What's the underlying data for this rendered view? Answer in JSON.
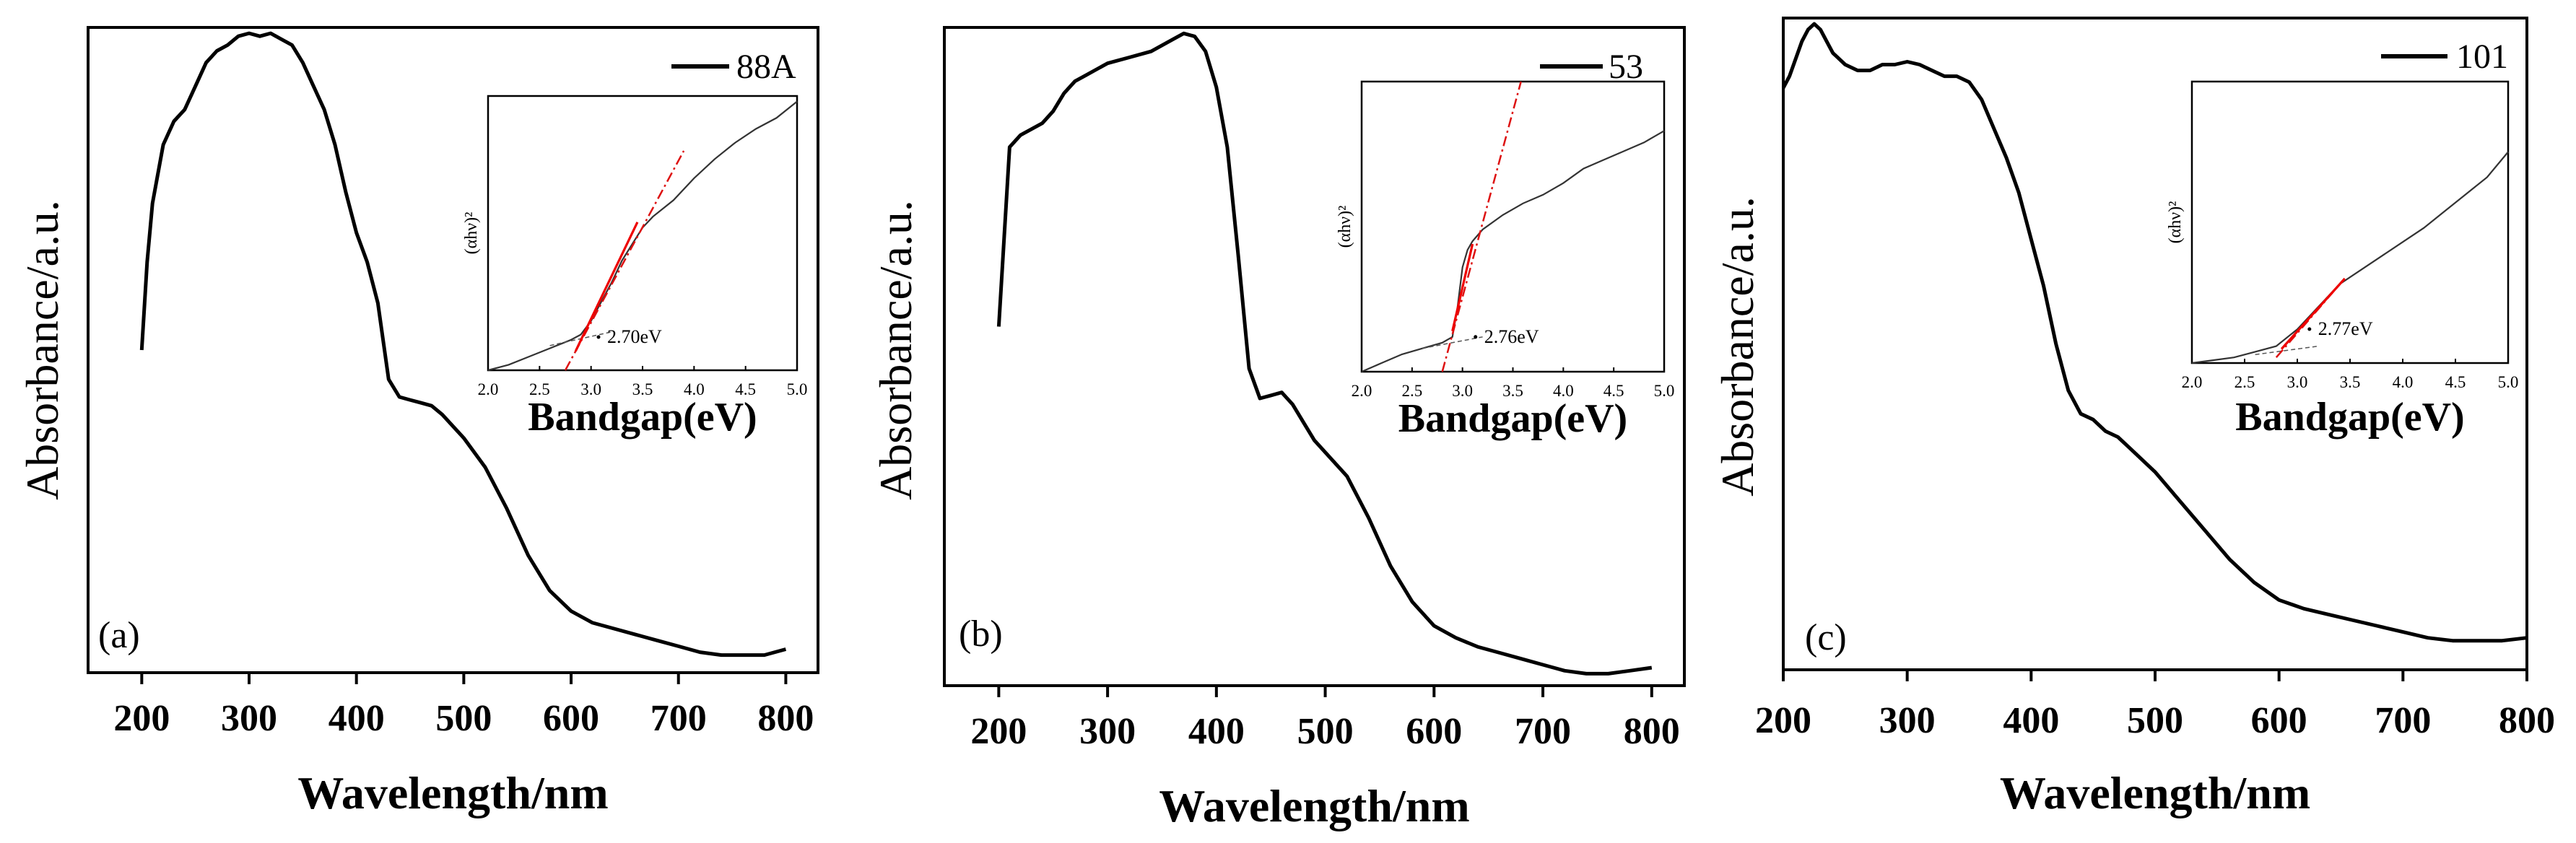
{
  "chart_data": [
    {
      "type": "line",
      "panel_label": "(a)",
      "xlabel": "Wavelength/nm",
      "ylabel": "Absorbance/a.u.",
      "xlim": [
        150,
        830
      ],
      "ylim": [
        0,
        1.1
      ],
      "xticks": [
        200,
        300,
        400,
        500,
        600,
        700,
        800
      ],
      "legend": "88A",
      "series": [
        {
          "name": "88A",
          "x": [
            200,
            205,
            210,
            220,
            230,
            240,
            250,
            260,
            270,
            280,
            290,
            300,
            310,
            320,
            330,
            340,
            350,
            360,
            370,
            380,
            390,
            400,
            410,
            420,
            430,
            440,
            450,
            460,
            470,
            480,
            490,
            500,
            520,
            540,
            560,
            580,
            600,
            620,
            640,
            660,
            680,
            700,
            720,
            740,
            760,
            780,
            800
          ],
          "y": [
            0.55,
            0.7,
            0.8,
            0.9,
            0.94,
            0.96,
            1.0,
            1.04,
            1.06,
            1.07,
            1.085,
            1.09,
            1.085,
            1.09,
            1.08,
            1.07,
            1.04,
            1.0,
            0.96,
            0.9,
            0.82,
            0.75,
            0.7,
            0.63,
            0.5,
            0.47,
            0.465,
            0.46,
            0.455,
            0.44,
            0.42,
            0.4,
            0.35,
            0.28,
            0.2,
            0.14,
            0.105,
            0.085,
            0.075,
            0.065,
            0.055,
            0.045,
            0.035,
            0.03,
            0.03,
            0.03,
            0.04
          ]
        }
      ],
      "inset": {
        "xlabel": "Bandgap(eV)",
        "ylabel": "(αhν)²",
        "xlim": [
          2.0,
          5.0
        ],
        "ylim": [
          0,
          1
        ],
        "xticks": [
          2.0,
          2.5,
          3.0,
          3.5,
          4.0,
          4.5,
          5.0
        ],
        "xtick_labels": [
          "2.0",
          "2.5",
          "3.0",
          "3.5",
          "4.0",
          "4.5",
          "5.0"
        ],
        "curve": {
          "x": [
            2.0,
            2.2,
            2.4,
            2.6,
            2.8,
            2.9,
            3.0,
            3.1,
            3.2,
            3.3,
            3.4,
            3.5,
            3.6,
            3.8,
            4.0,
            4.2,
            4.4,
            4.6,
            4.8,
            5.0
          ],
          "y": [
            0.0,
            0.02,
            0.05,
            0.08,
            0.11,
            0.13,
            0.18,
            0.25,
            0.32,
            0.4,
            0.46,
            0.52,
            0.56,
            0.62,
            0.7,
            0.77,
            0.83,
            0.88,
            0.92,
            0.98
          ]
        },
        "fit_segment": {
          "x": [
            2.85,
            3.45
          ],
          "y": [
            0.07,
            0.54
          ]
        },
        "tangent": {
          "x": [
            2.75,
            3.9
          ],
          "y": [
            0.0,
            0.8
          ]
        },
        "baseline": {
          "x": [
            2.6,
            3.2
          ],
          "y": [
            0.09,
            0.14
          ]
        },
        "bandgap_annotation": "2.70eV"
      }
    },
    {
      "type": "line",
      "panel_label": "(b)",
      "xlabel": "Wavelength/nm",
      "ylabel": "Absorbance/a.u.",
      "xlim": [
        150,
        830
      ],
      "ylim": [
        0,
        1.1
      ],
      "xticks": [
        200,
        300,
        400,
        500,
        600,
        700,
        800
      ],
      "legend": "53",
      "series": [
        {
          "name": "53",
          "x": [
            200,
            205,
            210,
            220,
            230,
            240,
            250,
            260,
            270,
            280,
            290,
            300,
            320,
            340,
            360,
            370,
            380,
            390,
            400,
            410,
            420,
            430,
            440,
            450,
            460,
            470,
            480,
            490,
            500,
            520,
            540,
            560,
            580,
            600,
            620,
            640,
            660,
            680,
            700,
            720,
            740,
            760,
            780,
            800
          ],
          "y": [
            0.6,
            0.75,
            0.9,
            0.92,
            0.93,
            0.94,
            0.96,
            0.99,
            1.01,
            1.02,
            1.03,
            1.04,
            1.05,
            1.06,
            1.08,
            1.09,
            1.085,
            1.06,
            1.0,
            0.9,
            0.72,
            0.53,
            0.48,
            0.485,
            0.49,
            0.47,
            0.44,
            0.41,
            0.39,
            0.35,
            0.28,
            0.2,
            0.14,
            0.1,
            0.08,
            0.065,
            0.055,
            0.045,
            0.035,
            0.025,
            0.02,
            0.02,
            0.025,
            0.03
          ]
        }
      ],
      "inset": {
        "xlabel": "Bandgap(eV)",
        "ylabel": "(αhν)²",
        "xlim": [
          2.0,
          5.0
        ],
        "ylim": [
          0,
          1
        ],
        "xticks": [
          2.0,
          2.5,
          3.0,
          3.5,
          4.0,
          4.5,
          5.0
        ],
        "xtick_labels": [
          "2.0",
          "2.5",
          "3.0",
          "3.5",
          "4.0",
          "4.5",
          "5.0"
        ],
        "curve": {
          "x": [
            2.0,
            2.2,
            2.4,
            2.6,
            2.8,
            2.9,
            2.95,
            3.0,
            3.05,
            3.1,
            3.2,
            3.4,
            3.6,
            3.8,
            4.0,
            4.2,
            4.4,
            4.6,
            4.8,
            5.0
          ],
          "y": [
            0.0,
            0.03,
            0.06,
            0.08,
            0.1,
            0.12,
            0.22,
            0.36,
            0.42,
            0.45,
            0.49,
            0.54,
            0.58,
            0.61,
            0.65,
            0.7,
            0.73,
            0.76,
            0.79,
            0.83
          ]
        },
        "fit_segment": {
          "x": [
            2.9,
            3.1
          ],
          "y": [
            0.14,
            0.44
          ]
        },
        "tangent": {
          "x": [
            2.8,
            3.58
          ],
          "y": [
            0.0,
            1.0
          ]
        },
        "baseline": {
          "x": [
            2.6,
            3.2
          ],
          "y": [
            0.08,
            0.12
          ]
        },
        "bandgap_annotation": "2.76eV"
      }
    },
    {
      "type": "line",
      "panel_label": "(c)",
      "xlabel": "Wavelength/nm",
      "ylabel": "Absorbance/a.u.",
      "xlim": [
        200,
        800
      ],
      "ylim": [
        0,
        1.12
      ],
      "xticks": [
        200,
        300,
        400,
        500,
        600,
        700,
        800
      ],
      "legend": "101",
      "series": [
        {
          "name": "101",
          "x": [
            200,
            205,
            210,
            215,
            220,
            225,
            230,
            235,
            240,
            250,
            260,
            270,
            280,
            290,
            300,
            310,
            320,
            330,
            340,
            350,
            360,
            370,
            380,
            390,
            400,
            410,
            420,
            430,
            440,
            450,
            460,
            470,
            480,
            500,
            520,
            540,
            560,
            580,
            600,
            620,
            640,
            660,
            680,
            700,
            720,
            740,
            760,
            780,
            800
          ],
          "y": [
            1.0,
            1.02,
            1.05,
            1.08,
            1.1,
            1.11,
            1.1,
            1.08,
            1.06,
            1.04,
            1.03,
            1.03,
            1.04,
            1.04,
            1.045,
            1.04,
            1.03,
            1.02,
            1.02,
            1.01,
            0.98,
            0.93,
            0.88,
            0.82,
            0.74,
            0.66,
            0.56,
            0.48,
            0.44,
            0.43,
            0.41,
            0.4,
            0.38,
            0.34,
            0.29,
            0.24,
            0.19,
            0.15,
            0.12,
            0.105,
            0.095,
            0.085,
            0.075,
            0.065,
            0.055,
            0.05,
            0.05,
            0.05,
            0.055
          ]
        }
      ],
      "inset": {
        "xlabel": "Bandgap(eV)",
        "ylabel": "(αhν)²",
        "xlim": [
          2.0,
          5.0
        ],
        "ylim": [
          0,
          1
        ],
        "xticks": [
          2.0,
          2.5,
          3.0,
          3.5,
          4.0,
          4.5,
          5.0
        ],
        "xtick_labels": [
          "2.0",
          "2.5",
          "3.0",
          "3.5",
          "4.0",
          "4.5",
          "5.0"
        ],
        "curve": {
          "x": [
            2.0,
            2.2,
            2.4,
            2.6,
            2.8,
            3.0,
            3.2,
            3.4,
            3.6,
            3.8,
            4.0,
            4.2,
            4.4,
            4.6,
            4.8,
            5.0
          ],
          "y": [
            0.0,
            0.01,
            0.02,
            0.04,
            0.06,
            0.12,
            0.2,
            0.28,
            0.33,
            0.38,
            0.43,
            0.48,
            0.54,
            0.6,
            0.66,
            0.75
          ]
        },
        "fit_segment": {
          "x": [
            2.85,
            3.45
          ],
          "y": [
            0.05,
            0.3
          ]
        },
        "tangent": {
          "x": [
            2.8,
            3.45
          ],
          "y": [
            0.02,
            0.3
          ]
        },
        "baseline": {
          "x": [
            2.6,
            3.2
          ],
          "y": [
            0.03,
            0.06
          ]
        },
        "bandgap_annotation": "2.77eV"
      }
    }
  ]
}
